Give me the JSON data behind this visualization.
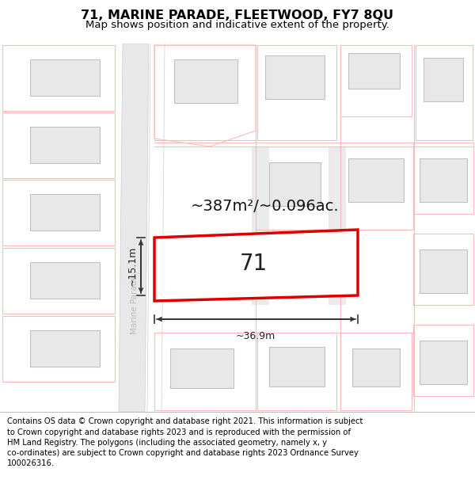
{
  "title": "71, MARINE PARADE, FLEETWOOD, FY7 8QU",
  "subtitle": "Map shows position and indicative extent of the property.",
  "area_text": "~387m²/~0.096ac.",
  "property_number": "71",
  "width_label": "~36.9m",
  "height_label": "~15.1m",
  "road_name": "Marine Parade",
  "footer_text": "Contains OS data © Crown copyright and database right 2021. This information is subject\nto Crown copyright and database rights 2023 and is reproduced with the permission of\nHM Land Registry. The polygons (including the associated geometry, namely x, y\nco-ordinates) are subject to Crown copyright and database rights 2023 Ordnance Survey\n100026316.",
  "map_bg": "#ffffff",
  "building_fill": "#e8e8e8",
  "building_edge": "#c0c0c0",
  "plot_red": "#dd0000",
  "dim_color": "#333333",
  "road_fill": "#eeeeee",
  "road_edge": "#cccccc",
  "plot_outline_color": "#ffbbbb",
  "title_fontsize": 11.5,
  "subtitle_fontsize": 9.5,
  "area_fontsize": 14,
  "number_fontsize": 20,
  "footer_fontsize": 7.2,
  "road_text_color": "#bbbbbb",
  "dim_text_color": "#222222"
}
